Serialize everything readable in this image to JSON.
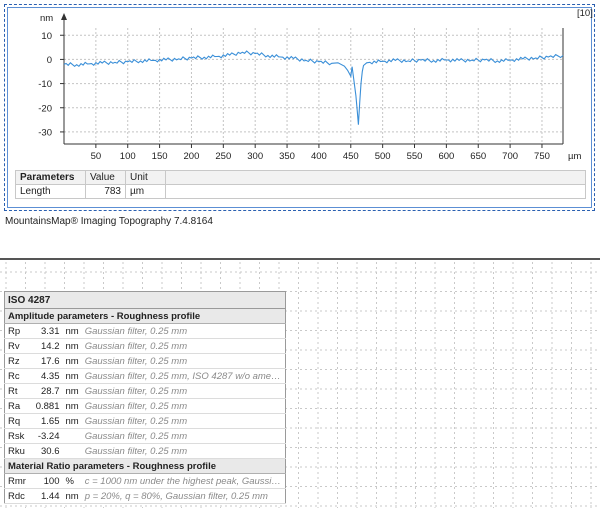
{
  "plot": {
    "badge": "[10]",
    "y_unit": "nm",
    "x_unit": "µm",
    "y_ticks": [
      "10",
      "0",
      "-10",
      "-20",
      "-30"
    ],
    "x_ticks": [
      "50",
      "100",
      "150",
      "200",
      "250",
      "300",
      "350",
      "400",
      "450",
      "500",
      "550",
      "600",
      "650",
      "700",
      "750"
    ],
    "line_color": "#3a8fd8"
  },
  "chart_data": {
    "type": "line",
    "xlabel": "",
    "ylabel": "",
    "x_unit": "µm",
    "y_unit": "nm",
    "xlim": [
      0,
      783
    ],
    "ylim": [
      -35,
      13
    ],
    "grid": true,
    "x": [
      0,
      20,
      40,
      60,
      80,
      100,
      120,
      140,
      160,
      180,
      200,
      220,
      240,
      260,
      280,
      300,
      320,
      340,
      360,
      380,
      400,
      420,
      430,
      440,
      445,
      450,
      452,
      455,
      458,
      460,
      462,
      464,
      466,
      468,
      470,
      475,
      480,
      500,
      520,
      540,
      560,
      580,
      600,
      620,
      640,
      660,
      680,
      700,
      720,
      740,
      760,
      783
    ],
    "y": [
      -2,
      -2.2,
      -1.8,
      -1.5,
      -1.2,
      -1.0,
      -0.6,
      -0.4,
      -0.2,
      0.2,
      0.6,
      0.9,
      1.2,
      1.8,
      3.0,
      2.4,
      1.6,
      1.0,
      0.4,
      -0.4,
      -1.0,
      -1.6,
      -1.4,
      -2.8,
      -4.5,
      -7.0,
      -3.0,
      -9.0,
      -15.0,
      -21.0,
      -27.0,
      -18.0,
      -10.0,
      -5.0,
      -2.5,
      -1.4,
      -1.2,
      -0.8,
      -0.4,
      -0.6,
      -0.3,
      -0.5,
      -0.2,
      -0.4,
      -0.3,
      -0.2,
      -0.6,
      -0.3,
      0.2,
      0.6,
      1.0,
      1.6
    ],
    "series": [
      {
        "values": "y"
      }
    ]
  },
  "parameters": {
    "headers": [
      "Parameters",
      "Value",
      "Unit"
    ],
    "rows": [
      {
        "name": "Length",
        "value": "783",
        "unit": "µm"
      }
    ]
  },
  "software_label": "MountainsMap® Imaging Topography 7.4.8164",
  "iso": {
    "title": "ISO 4287",
    "amplitude_section": "Amplitude parameters - Roughness profile",
    "amplitude_rows": [
      {
        "param": "Rp",
        "value": "3.31",
        "unit": "nm",
        "comment": "Gaussian filter, 0.25 mm"
      },
      {
        "param": "Rv",
        "value": "14.2",
        "unit": "nm",
        "comment": "Gaussian filter, 0.25 mm"
      },
      {
        "param": "Rz",
        "value": "17.6",
        "unit": "nm",
        "comment": "Gaussian filter, 0.25 mm"
      },
      {
        "param": "Rc",
        "value": "4.35",
        "unit": "nm",
        "comment": "Gaussian filter, 0.25 mm, ISO 4287 w/o amend..."
      },
      {
        "param": "Rt",
        "value": "28.7",
        "unit": "nm",
        "comment": "Gaussian filter, 0.25 mm"
      },
      {
        "param": "Ra",
        "value": "0.881",
        "unit": "nm",
        "comment": "Gaussian filter, 0.25 mm"
      },
      {
        "param": "Rq",
        "value": "1.65",
        "unit": "nm",
        "comment": "Gaussian filter, 0.25 mm"
      },
      {
        "param": "Rsk",
        "value": "-3.24",
        "unit": "",
        "comment": "Gaussian filter, 0.25 mm"
      },
      {
        "param": "Rku",
        "value": "30.6",
        "unit": "",
        "comment": "Gaussian filter, 0.25 mm"
      }
    ],
    "material_section": "Material Ratio parameters - Roughness profile",
    "material_rows": [
      {
        "param": "Rmr",
        "value": "100",
        "unit": "%",
        "comment": "c = 1000 nm under the highest peak, Gaussian..."
      },
      {
        "param": "Rdc",
        "value": "1.44",
        "unit": "nm",
        "comment": "p = 20%, q = 80%, Gaussian filter, 0.25 mm"
      }
    ]
  }
}
